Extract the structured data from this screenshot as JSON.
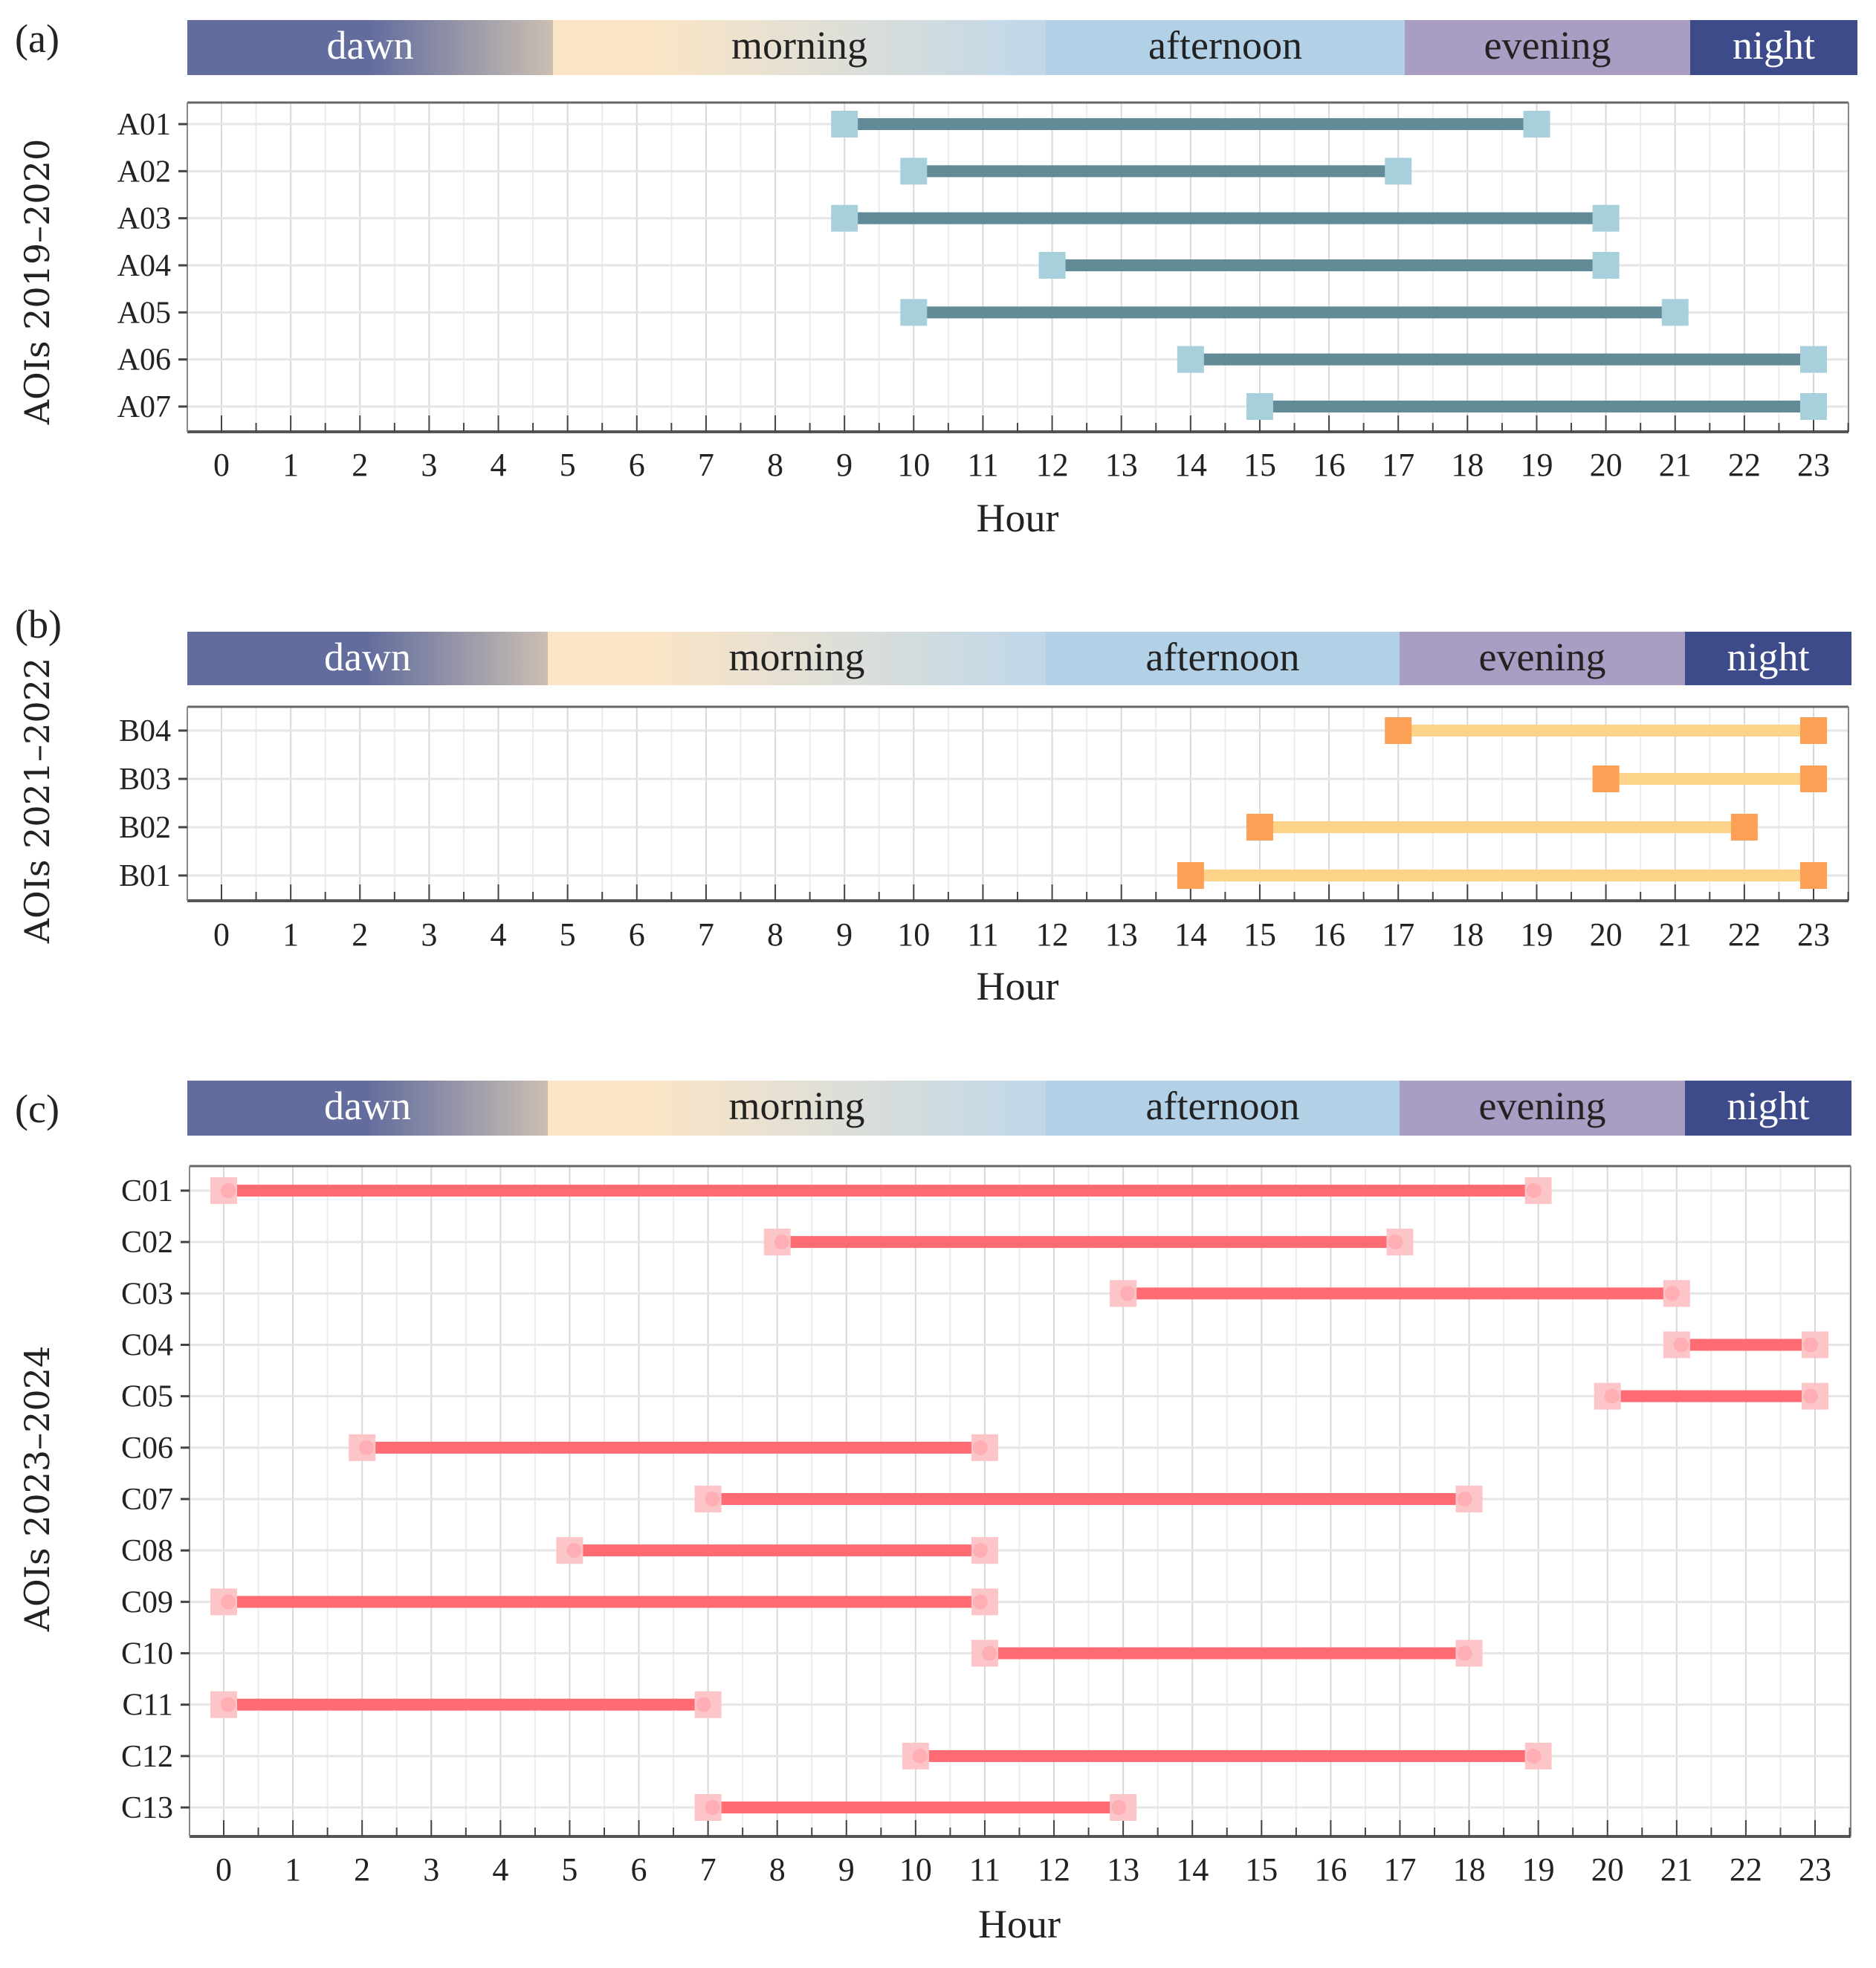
{
  "colors": {
    "dawn_start": "#636d9d",
    "dawn_end": "#cbbfb3",
    "morning_start": "#fbe5c6",
    "morning_end": "#c2d8e8",
    "afternoon": "#b2d1e6",
    "evening": "#a99dc3",
    "night": "#3e4b8b",
    "a_bar": "#628b98",
    "a_cap": "#a8cfdc",
    "b_bar": "#fdd38a",
    "b_cap": "#fba054",
    "c_bar": "#ff6b73",
    "c_cap": "#fcc6c9",
    "c_dot": "#ffaeb3"
  },
  "chart_data": [
    {
      "type": "range-bar",
      "panel_label": "(a)",
      "periods": [
        "dawn",
        "morning",
        "afternoon",
        "evening",
        "night"
      ],
      "ylabel": "AOIs 2019–2020",
      "xlabel": "Hour",
      "xlim": [
        0,
        23
      ],
      "xticks": [
        "0",
        "1",
        "2",
        "3",
        "4",
        "5",
        "6",
        "7",
        "8",
        "9",
        "10",
        "11",
        "12",
        "13",
        "14",
        "15",
        "16",
        "17",
        "18",
        "19",
        "20",
        "21",
        "22",
        "23"
      ],
      "grid": true,
      "rows": [
        {
          "label": "A01",
          "start": 9,
          "end": 19
        },
        {
          "label": "A02",
          "start": 10,
          "end": 17
        },
        {
          "label": "A03",
          "start": 9,
          "end": 20
        },
        {
          "label": "A04",
          "start": 12,
          "end": 20
        },
        {
          "label": "A05",
          "start": 10,
          "end": 21
        },
        {
          "label": "A06",
          "start": 14,
          "end": 23
        },
        {
          "label": "A07",
          "start": 15,
          "end": 23
        }
      ]
    },
    {
      "type": "range-bar",
      "panel_label": "(b)",
      "periods": [
        "dawn",
        "morning",
        "afternoon",
        "evening",
        "night"
      ],
      "ylabel": "AOIs 2021–2022",
      "xlabel": "Hour",
      "xlim": [
        0,
        23
      ],
      "xticks": [
        "0",
        "1",
        "2",
        "3",
        "4",
        "5",
        "6",
        "7",
        "8",
        "9",
        "10",
        "11",
        "12",
        "13",
        "14",
        "15",
        "16",
        "17",
        "18",
        "19",
        "20",
        "21",
        "22",
        "23"
      ],
      "grid": true,
      "rows": [
        {
          "label": "B04",
          "start": 17,
          "end": 23
        },
        {
          "label": "B03",
          "start": 20,
          "end": 23
        },
        {
          "label": "B02",
          "start": 15,
          "end": 22
        },
        {
          "label": "B01",
          "start": 14,
          "end": 23
        }
      ]
    },
    {
      "type": "range-bar",
      "panel_label": "(c)",
      "periods": [
        "dawn",
        "morning",
        "afternoon",
        "evening",
        "night"
      ],
      "ylabel": "AOIs 2023–2024",
      "xlabel": "Hour",
      "xlim": [
        0,
        23
      ],
      "xticks": [
        "0",
        "1",
        "2",
        "3",
        "4",
        "5",
        "6",
        "7",
        "8",
        "9",
        "10",
        "11",
        "12",
        "13",
        "14",
        "15",
        "16",
        "17",
        "18",
        "19",
        "20",
        "21",
        "22",
        "23"
      ],
      "grid": true,
      "rows": [
        {
          "label": "C01",
          "start": 0,
          "end": 19
        },
        {
          "label": "C02",
          "start": 8,
          "end": 17
        },
        {
          "label": "C03",
          "start": 13,
          "end": 21
        },
        {
          "label": "C04",
          "start": 21,
          "end": 23
        },
        {
          "label": "C05",
          "start": 20,
          "end": 23
        },
        {
          "label": "C06",
          "start": 2,
          "end": 11
        },
        {
          "label": "C07",
          "start": 7,
          "end": 18
        },
        {
          "label": "C08",
          "start": 5,
          "end": 11
        },
        {
          "label": "C09",
          "start": 0,
          "end": 11
        },
        {
          "label": "C10",
          "start": 11,
          "end": 18
        },
        {
          "label": "C11",
          "start": 0,
          "end": 7
        },
        {
          "label": "C12",
          "start": 10,
          "end": 19
        },
        {
          "label": "C13",
          "start": 7,
          "end": 13
        }
      ]
    }
  ]
}
